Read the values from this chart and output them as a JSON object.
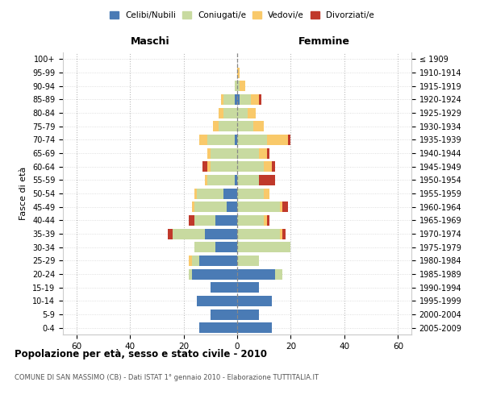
{
  "age_groups": [
    "0-4",
    "5-9",
    "10-14",
    "15-19",
    "20-24",
    "25-29",
    "30-34",
    "35-39",
    "40-44",
    "45-49",
    "50-54",
    "55-59",
    "60-64",
    "65-69",
    "70-74",
    "75-79",
    "80-84",
    "85-89",
    "90-94",
    "95-99",
    "100+"
  ],
  "birth_years": [
    "2005-2009",
    "2000-2004",
    "1995-1999",
    "1990-1994",
    "1985-1989",
    "1980-1984",
    "1975-1979",
    "1970-1974",
    "1965-1969",
    "1960-1964",
    "1955-1959",
    "1950-1954",
    "1945-1949",
    "1940-1944",
    "1935-1939",
    "1930-1934",
    "1925-1929",
    "1920-1924",
    "1915-1919",
    "1910-1914",
    "≤ 1909"
  ],
  "males": {
    "celibi": [
      14,
      10,
      15,
      10,
      17,
      14,
      8,
      12,
      8,
      4,
      5,
      1,
      0,
      0,
      1,
      0,
      0,
      1,
      0,
      0,
      0
    ],
    "coniugati": [
      0,
      0,
      0,
      0,
      1,
      3,
      8,
      12,
      8,
      12,
      10,
      10,
      10,
      10,
      10,
      7,
      5,
      4,
      1,
      0,
      0
    ],
    "vedovi": [
      0,
      0,
      0,
      0,
      0,
      1,
      0,
      0,
      0,
      1,
      1,
      1,
      1,
      1,
      3,
      2,
      2,
      1,
      0,
      0,
      0
    ],
    "divorziati": [
      0,
      0,
      0,
      0,
      0,
      0,
      0,
      2,
      2,
      0,
      0,
      0,
      2,
      0,
      0,
      0,
      0,
      0,
      0,
      0,
      0
    ]
  },
  "females": {
    "nubili": [
      13,
      8,
      13,
      8,
      14,
      0,
      0,
      0,
      0,
      0,
      0,
      0,
      0,
      0,
      0,
      0,
      0,
      1,
      0,
      0,
      0
    ],
    "coniugate": [
      0,
      0,
      0,
      0,
      3,
      8,
      20,
      16,
      10,
      16,
      10,
      8,
      10,
      8,
      11,
      6,
      4,
      4,
      1,
      0,
      0
    ],
    "vedove": [
      0,
      0,
      0,
      0,
      0,
      0,
      0,
      1,
      1,
      1,
      2,
      0,
      3,
      3,
      8,
      4,
      3,
      3,
      2,
      1,
      0
    ],
    "divorziate": [
      0,
      0,
      0,
      0,
      0,
      0,
      0,
      1,
      1,
      2,
      0,
      6,
      1,
      1,
      1,
      0,
      0,
      1,
      0,
      0,
      0
    ]
  },
  "colors": {
    "celibi": "#4a7bb5",
    "coniugati": "#c8daa0",
    "vedovi": "#f9c96a",
    "divorziati": "#c0392b"
  },
  "xlim": 65,
  "title": "Popolazione per età, sesso e stato civile - 2010",
  "subtitle": "COMUNE DI SAN MASSIMO (CB) - Dati ISTAT 1° gennaio 2010 - Elaborazione TUTTITALIA.IT",
  "ylabel_left": "Fasce di età",
  "xlabel_left": "Maschi",
  "xlabel_right": "Femmine"
}
